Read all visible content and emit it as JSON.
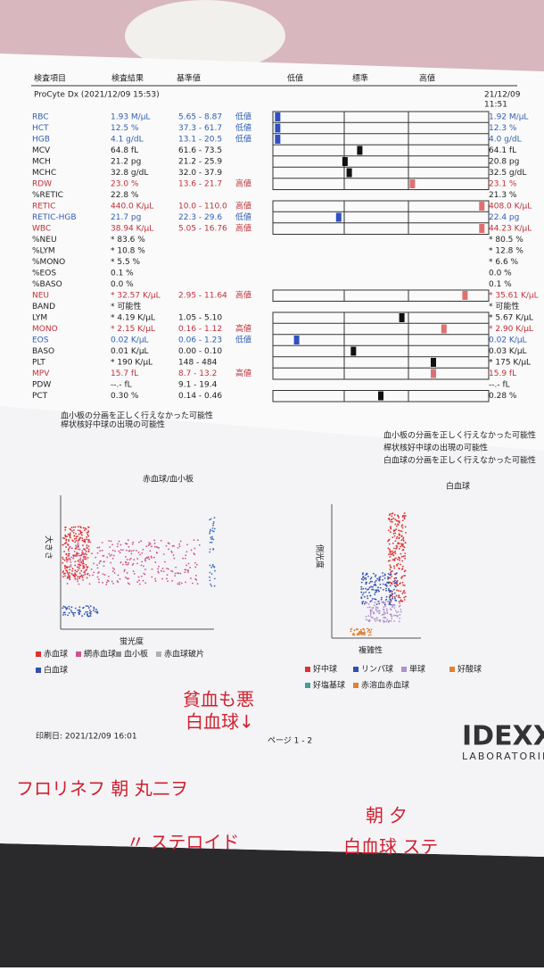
{
  "header": {
    "columns": [
      "検査項目",
      "検査結果",
      "基準値",
      "低値",
      "標準",
      "高値"
    ],
    "device": "ProCyte Dx (2021/12/09 15:53)",
    "prev_date": "21/12/09",
    "prev_time": "11:51"
  },
  "rows": [
    {
      "name": "RBC",
      "result": "1.93 M/µL",
      "range": "5.65 - 8.87",
      "flag": "低値",
      "prev": "1.92 M/µL"
    },
    {
      "name": "HCT",
      "result": "12.5 %",
      "range": "37.3 - 61.7",
      "flag": "低値",
      "prev": "12.3 %"
    },
    {
      "name": "HGB",
      "result": "4.1 g/dL",
      "range": "13.1 - 20.5",
      "flag": "低値",
      "prev": "4.0 g/dL"
    },
    {
      "name": "MCV",
      "result": "64.8 fL",
      "range": "61.6 - 73.5",
      "prev": "64.1 fL"
    },
    {
      "name": "MCH",
      "result": "21.2 pg",
      "range": "21.2 - 25.9",
      "prev": "20.8 pg"
    },
    {
      "name": "MCHC",
      "result": "32.8 g/dL",
      "range": "32.0 - 37.9",
      "prev": "32.5 g/dL"
    },
    {
      "name": "RDW",
      "result": "23.0 %",
      "range": "13.6 - 21.7",
      "flag": "高値",
      "prev": "23.1 %"
    },
    {
      "name": "%RETIC",
      "result": "22.8 %",
      "prev": "21.3 %"
    },
    {
      "name": "RETIC",
      "result": "440.0 K/µL",
      "range": "10.0 - 110.0",
      "flag": "高値",
      "prev": "408.0 K/µL"
    },
    {
      "name": "RETIC-HGB",
      "result": "21.7 pg",
      "range": "22.3 - 29.6",
      "flag": "低値",
      "prev": "22.4 pg"
    },
    {
      "name": "WBC",
      "result": "38.94 K/µL",
      "range": "5.05 - 16.76",
      "flag": "高値",
      "prev": "44.23 K/µL"
    },
    {
      "name": "%NEU",
      "result": "* 83.6 %",
      "prev": "* 80.5 %"
    },
    {
      "name": "%LYM",
      "result": "* 10.8 %",
      "prev": "* 12.8 %"
    },
    {
      "name": "%MONO",
      "result": "* 5.5 %",
      "prev": "* 6.6 %"
    },
    {
      "name": "%EOS",
      "result": "0.1 %",
      "prev": "0.0 %"
    },
    {
      "name": "%BASO",
      "result": "0.0 %",
      "prev": "0.1 %"
    },
    {
      "name": "NEU",
      "result": "* 32.57 K/µL",
      "range": "2.95 - 11.64",
      "flag": "高値",
      "prev": "* 35.61 K/µL"
    },
    {
      "name": "BAND",
      "result": "* 可能性",
      "prev": "* 可能性"
    },
    {
      "name": "LYM",
      "result": "* 4.19 K/µL",
      "range": "1.05 - 5.10",
      "prev": "* 5.67 K/µL"
    },
    {
      "name": "MONO",
      "result": "* 2.15 K/µL",
      "range": "0.16 - 1.12",
      "flag": "高値",
      "prev": "* 2.90 K/µL"
    },
    {
      "name": "EOS",
      "result": "0.02 K/µL",
      "range": "0.06 - 1.23",
      "flag": "低値",
      "prev": "0.02 K/µL"
    },
    {
      "name": "BASO",
      "result": "0.01 K/µL",
      "range": "0.00 - 0.10",
      "prev": "0.03 K/µL"
    },
    {
      "name": "PLT",
      "result": "* 190 K/µL",
      "range": "148 - 484",
      "prev": "* 175 K/µL"
    },
    {
      "name": "MPV",
      "result": "15.7 fL",
      "range": "8.7 - 13.2",
      "flag": "高値",
      "prev": "15.9 fL"
    },
    {
      "name": "PDW",
      "result": "--.- fL",
      "range": "9.1 - 19.4",
      "prev": "--.- fL"
    },
    {
      "name": "PCT",
      "result": "0.30 %",
      "range": "0.14 - 0.46",
      "prev": "0.28 %"
    }
  ],
  "notes_left": [
    "血小板の分画を正しく行えなかった可能性",
    "桿状核好中球の出現の可能性"
  ],
  "notes_right": [
    "血小板の分画を正しく行えなかった可能性",
    "桿状核好中球の出現の可能性",
    "白血球の分画を正しく行えなかった可能性"
  ],
  "plot_rbc": {
    "title": "赤血球/血小板",
    "y_label": "大きさ",
    "x_label": "蛍光度",
    "legend": [
      "赤血球",
      "網赤血球",
      "血小板",
      "赤血球破片",
      "白血球"
    ]
  },
  "plot_wbc": {
    "title": "白血球",
    "y_label": "側光度",
    "x_label": "複雑性",
    "legend": [
      "好中球",
      "リンパ球",
      "単球",
      "好酸球",
      "好塩基球",
      "赤溶血赤血球"
    ]
  },
  "footer": {
    "printed": "印刷日: 2021/12/09 16:01",
    "page": "ページ 1 - 2",
    "logo": "IDEXX",
    "logo_sub": "LABORATORIES"
  },
  "handwriting": [
    "貧血も悪",
    "白血球↓",
    "フロリネフ 朝 丸二ヲ",
    "〃 ステロイド",
    "朝 夕",
    "白血球 ステ"
  ]
}
